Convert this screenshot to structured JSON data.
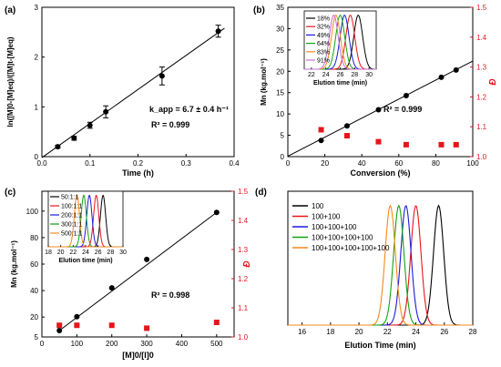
{
  "chart_data": [
    {
      "panel": "(a)",
      "type": "scatter",
      "xlabel": "Time (h)",
      "ylabel": "ln([M]0-[M]eq)/([M]t-[M]eq)",
      "xlim": [
        0.0,
        0.4
      ],
      "ylim": [
        0.0,
        3.0
      ],
      "xticks": [
        "0.0",
        "0.1",
        "0.2",
        "0.3",
        "0.4"
      ],
      "yticks": [
        "0",
        "1",
        "2",
        "3"
      ],
      "points": [
        {
          "x": 0.033,
          "y": 0.2,
          "err": 0.03
        },
        {
          "x": 0.067,
          "y": 0.37,
          "err": 0.04
        },
        {
          "x": 0.1,
          "y": 0.63,
          "err": 0.06
        },
        {
          "x": 0.133,
          "y": 0.9,
          "err": 0.12
        },
        {
          "x": 0.25,
          "y": 1.62,
          "err": 0.18
        },
        {
          "x": 0.367,
          "y": 2.52,
          "err": 0.12
        }
      ],
      "fit": {
        "x": [
          0.0,
          0.38
        ],
        "y": [
          -0.02,
          2.58
        ]
      },
      "annotations": [
        "k_app = 6.7 ± 0.4 h⁻¹",
        "R² = 0.999"
      ]
    },
    {
      "panel": "(b)",
      "type": "scatter",
      "xlabel": "Conversion (%)",
      "ylabel": "Mn (kg.mol⁻¹)",
      "ylabel_right": "Đ",
      "xlim": [
        0,
        100
      ],
      "ylim": [
        0,
        35
      ],
      "ylim_right": [
        1.0,
        1.5
      ],
      "xticks": [
        "0",
        "20",
        "40",
        "60",
        "80",
        "100"
      ],
      "yticks": [
        "0",
        "5",
        "10",
        "15",
        "20",
        "25",
        "30",
        "35"
      ],
      "yticks_right": [
        "1.0",
        "1.1",
        "1.2",
        "1.3",
        "1.4",
        "1.5"
      ],
      "mn_points": [
        {
          "x": 18,
          "y": 3.8
        },
        {
          "x": 32,
          "y": 7.2
        },
        {
          "x": 49,
          "y": 11.0
        },
        {
          "x": 64,
          "y": 14.3
        },
        {
          "x": 83,
          "y": 18.6
        },
        {
          "x": 91,
          "y": 20.3
        }
      ],
      "dispersity_points": [
        {
          "x": 18,
          "y": 1.09
        },
        {
          "x": 32,
          "y": 1.07
        },
        {
          "x": 49,
          "y": 1.05
        },
        {
          "x": 64,
          "y": 1.04
        },
        {
          "x": 83,
          "y": 1.04
        },
        {
          "x": 91,
          "y": 1.04
        }
      ],
      "fit": {
        "x": [
          0,
          100
        ],
        "y": [
          0.1,
          22.4
        ]
      },
      "annotations": [
        "R² = 0.999"
      ],
      "inset": {
        "xlabel": "Elution time (min)",
        "xlim": [
          21,
          31
        ],
        "xticks": [
          "22",
          "24",
          "26",
          "28",
          "30"
        ],
        "series": [
          {
            "name": "18%",
            "color": "#000000",
            "peak": 28.5
          },
          {
            "name": "32%",
            "color": "#e8141b",
            "peak": 27.4
          },
          {
            "name": "49%",
            "color": "#1a1adf",
            "peak": 26.6
          },
          {
            "name": "64%",
            "color": "#12a312",
            "peak": 26.0
          },
          {
            "name": "83%",
            "color": "#f28a1c",
            "peak": 25.4
          },
          {
            "name": "91%",
            "color": "#c36fd6",
            "peak": 25.1
          }
        ]
      }
    },
    {
      "panel": "(c)",
      "type": "scatter",
      "xlabel": "[M]0/[I]0",
      "ylabel": "Mn (kg.mol⁻¹)",
      "ylabel_right": "Đ",
      "xlim": [
        0,
        550
      ],
      "ylim": [
        5,
        115
      ],
      "ylim_right": [
        1.0,
        1.5
      ],
      "xticks": [
        "0",
        "100",
        "200",
        "300",
        "400",
        "500"
      ],
      "yticks": [
        "5",
        "20",
        "40",
        "60",
        "80",
        "100"
      ],
      "ytick_values": [
        5,
        20,
        40,
        60,
        80,
        100
      ],
      "yticks_right": [
        "1.0",
        "1.1",
        "1.2",
        "1.3",
        "1.4",
        "1.5"
      ],
      "mn_points": [
        {
          "x": 50,
          "y": 9.8
        },
        {
          "x": 100,
          "y": 20.3
        },
        {
          "x": 200,
          "y": 42.0
        },
        {
          "x": 300,
          "y": 63.5
        },
        {
          "x": 500,
          "y": 99.0
        }
      ],
      "dispersity_points": [
        {
          "x": 50,
          "y": 1.04
        },
        {
          "x": 100,
          "y": 1.04
        },
        {
          "x": 200,
          "y": 1.04
        },
        {
          "x": 300,
          "y": 1.03
        },
        {
          "x": 500,
          "y": 1.05
        }
      ],
      "fit": {
        "x": [
          50,
          500
        ],
        "y": [
          9.8,
          99.0
        ]
      },
      "annotations": [
        "R² = 0.998"
      ],
      "inset": {
        "xlabel": "Elution time (min)",
        "xlim": [
          18,
          30
        ],
        "xticks": [
          "18",
          "20",
          "22",
          "24",
          "26",
          "28",
          "30"
        ],
        "series": [
          {
            "name": "50:1:1",
            "color": "#000000",
            "peak": 26.8
          },
          {
            "name": "100:1:1",
            "color": "#e8141b",
            "peak": 25.7
          },
          {
            "name": "200:1:1",
            "color": "#1a1adf",
            "peak": 24.6
          },
          {
            "name": "300:1:1",
            "color": "#12a312",
            "peak": 23.7
          },
          {
            "name": "500:1:1",
            "color": "#f28a1c",
            "peak": 22.6
          }
        ]
      }
    },
    {
      "panel": "(d)",
      "type": "line",
      "xlabel": "Elution Time (min)",
      "xlim": [
        15,
        28
      ],
      "xticks": [
        "16",
        "18",
        "20",
        "22",
        "24",
        "26",
        "28"
      ],
      "series": [
        {
          "name": "100",
          "color": "#000000",
          "peak": 25.6
        },
        {
          "name": "100+100",
          "color": "#e8141b",
          "peak": 24.0
        },
        {
          "name": "100+100+100",
          "color": "#1a1adf",
          "peak": 23.3
        },
        {
          "name": "100+100+100+100",
          "color": "#12a312",
          "peak": 22.8
        },
        {
          "name": "100+100+100+100+100",
          "color": "#f28a1c",
          "peak": 22.2
        }
      ]
    }
  ]
}
